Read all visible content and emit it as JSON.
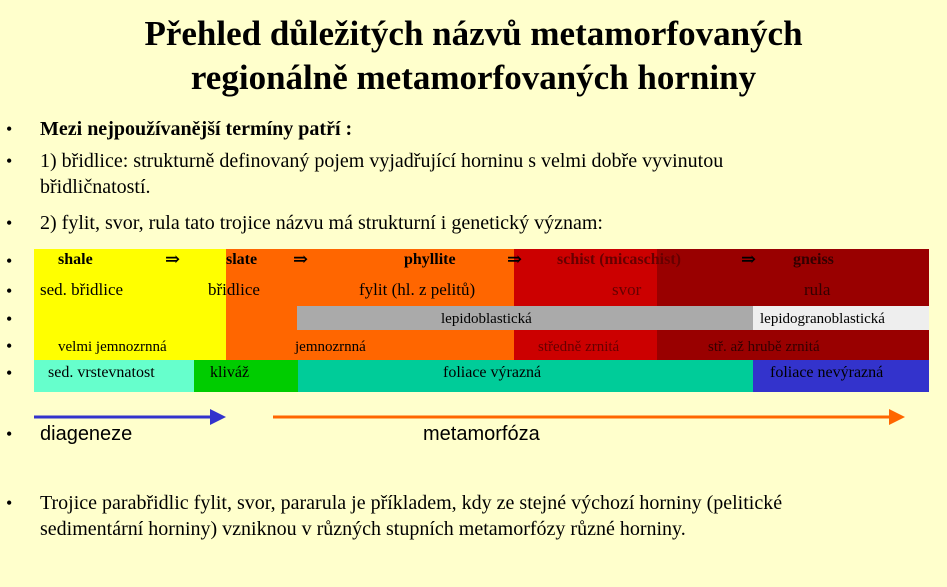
{
  "title": {
    "line1": "Přehled důležitých názvů metamorfovaných",
    "line2": "regionálně metamorfovaných horniny"
  },
  "bullets": {
    "symbol": "•",
    "b1": "Mezi nejpoužívanější termíny patří :",
    "b2_l1": "1) břidlice: strukturně definovaný pojem vyjadřující horninu  s velmi dobře vyvinutou",
    "b2_l2": "břidličnatostí.",
    "b3": "2) fylit, svor, rula tato trojice názvu má strukturní i genetický význam:",
    "b4": "diageneze",
    "b4b": "metamorfóza",
    "b5_l1": "Trojice parabřidlic fylit, svor, pararula je příkladem, kdy ze stejné výchozí horniny (pelitické",
    "b5_l2": "sedimentární horniny) vzniknou v různých stupních metamorfózy různé horniny."
  },
  "table": {
    "row1": {
      "shale": "shale",
      "arrow": "⇒",
      "slate": "slate",
      "phyllite": "phyllite",
      "schist": "schist (micaschist)",
      "gneiss": "gneiss"
    },
    "row2": {
      "c1": "sed. břidlice",
      "c2": "břidlice",
      "c3": "fylit (hl. z pelitů)",
      "c4": "svor",
      "c5": "rula"
    },
    "row3": {
      "c1": "lepidoblastická",
      "c2": "lepidogranoblastická"
    },
    "row4": {
      "c1": "velmi jemnozrnná",
      "c2": "jemnozrnná",
      "c3": "středně zrnitá",
      "c4": "stř. až hrubě zrnitá"
    },
    "row5": {
      "c1": "sed. vrstevnatost",
      "c2": "kliváž",
      "c3": "foliace výrazná",
      "c4": "foliace nevýrazná"
    }
  },
  "colors": {
    "background": "#ffffcc",
    "yellow": "#ffff00",
    "orange": "#ff6600",
    "red": "#cc0000",
    "darkred": "#990000",
    "gray": "#aaaaaa",
    "lightgray": "#eeeeee",
    "aqua": "#66ffcc",
    "green": "#00cc00",
    "teal": "#00cc99",
    "blue": "#3333cc",
    "arrow_blue": "#3333cc",
    "arrow_orange": "#ff6600"
  }
}
